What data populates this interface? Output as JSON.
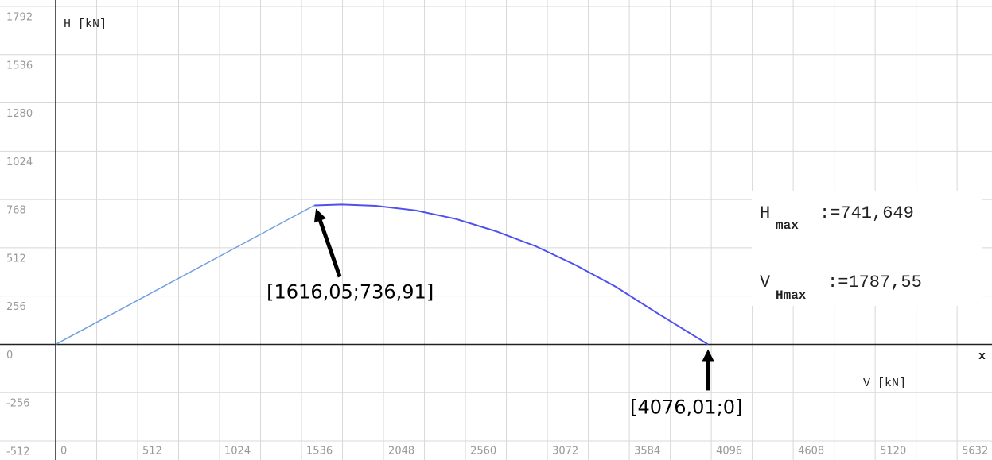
{
  "chart_data": {
    "type": "line",
    "y_label": "H  [kN]",
    "x_label": "V  [kN]",
    "x_axis_name": "x",
    "xlim": [
      0,
      5850
    ],
    "ylim": [
      -512,
      1792
    ],
    "xticks": [
      0,
      512,
      1024,
      1536,
      2048,
      2560,
      3072,
      3584,
      4096,
      4608,
      5120,
      5632
    ],
    "yticks": [
      -512,
      -256,
      0,
      256,
      512,
      768,
      1024,
      1280,
      1536,
      1792
    ],
    "grid": true,
    "series": [
      {
        "color": "#6fa0e0",
        "x": [
          0,
          1616.05
        ],
        "values": [
          0,
          736.91
        ]
      },
      {
        "color": "#5050f0",
        "x": [
          1616.05,
          1787.55,
          2000,
          2250,
          2500,
          2750,
          3000,
          3250,
          3500,
          3750,
          4076.01
        ],
        "values": [
          736.91,
          741.649,
          735,
          710,
          665,
          600,
          520,
          420,
          305,
          170,
          0
        ]
      }
    ],
    "annotations": [
      {
        "text": "[1616,05;736,91]",
        "x": 1616.05,
        "y": 736.91
      },
      {
        "text": "[4076,01;0]",
        "x": 4076.01,
        "y": 0
      }
    ],
    "results": [
      {
        "symbol": "H",
        "subscript": "max",
        "text": ":=741,649"
      },
      {
        "symbol": "V",
        "subscript": "Hmax",
        "text": ":=1787,55"
      }
    ]
  }
}
